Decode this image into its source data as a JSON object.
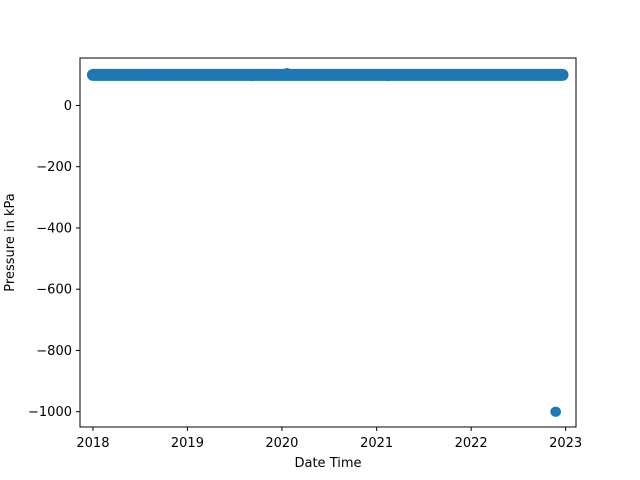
{
  "chart_data": {
    "type": "scatter",
    "title": "",
    "xlabel": "Date Time",
    "ylabel": "Pressure in kPa",
    "x_axis_type": "date",
    "xlim": [
      "2017-11-12",
      "2023-02-10"
    ],
    "ylim": [
      -1050,
      155
    ],
    "x_ticks": [
      {
        "value": "2018-01-01",
        "label": "2018"
      },
      {
        "value": "2019-01-01",
        "label": "2019"
      },
      {
        "value": "2020-01-01",
        "label": "2020"
      },
      {
        "value": "2021-01-01",
        "label": "2021"
      },
      {
        "value": "2022-01-01",
        "label": "2022"
      },
      {
        "value": "2023-01-01",
        "label": "2023"
      }
    ],
    "y_ticks": [
      {
        "value": 0,
        "label": "0"
      },
      {
        "value": -200,
        "label": "−200"
      },
      {
        "value": -400,
        "label": "−400"
      },
      {
        "value": -600,
        "label": "−600"
      },
      {
        "value": -800,
        "label": "−800"
      },
      {
        "value": -1000,
        "label": "−1000"
      }
    ],
    "grid": false,
    "marker_color": "#1f77b4",
    "series": [
      {
        "x": [
          "2018-01-01",
          "2018-02-15",
          "2018-04-01",
          "2018-05-15",
          "2018-07-01",
          "2018-08-15",
          "2018-10-01",
          "2018-11-15",
          "2019-01-01",
          "2019-02-15",
          "2019-04-01",
          "2019-05-15",
          "2019-07-01",
          "2019-08-15",
          "2019-10-01",
          "2019-11-15",
          "2020-01-20",
          "2020-03-01",
          "2020-04-15",
          "2020-06-01",
          "2020-07-15",
          "2020-09-01",
          "2020-10-15",
          "2020-12-01",
          "2021-01-15",
          "2021-03-01",
          "2021-04-15",
          "2021-06-01",
          "2021-07-15",
          "2021-09-01",
          "2021-10-15",
          "2021-12-01",
          "2022-01-15",
          "2022-03-01",
          "2022-04-15",
          "2022-06-01",
          "2022-07-15",
          "2022-09-01",
          "2022-10-15",
          "2022-11-20",
          "2022-12-20",
          "2019-09-10",
          "2020-08-10",
          "2021-02-10",
          "2022-09-20",
          "2022-11-22",
          "2022-11-25"
        ],
        "y": [
          100,
          101,
          99,
          100,
          100,
          101,
          99,
          100,
          100,
          100,
          99,
          100,
          101,
          99,
          100,
          100,
          106,
          100,
          100,
          99,
          100,
          101,
          100,
          99,
          100,
          100,
          98,
          100,
          100,
          99,
          100,
          101,
          100,
          100,
          99,
          100,
          101,
          100,
          99,
          100,
          100,
          96,
          97,
          96,
          97,
          -1000,
          -1000
        ]
      }
    ]
  }
}
